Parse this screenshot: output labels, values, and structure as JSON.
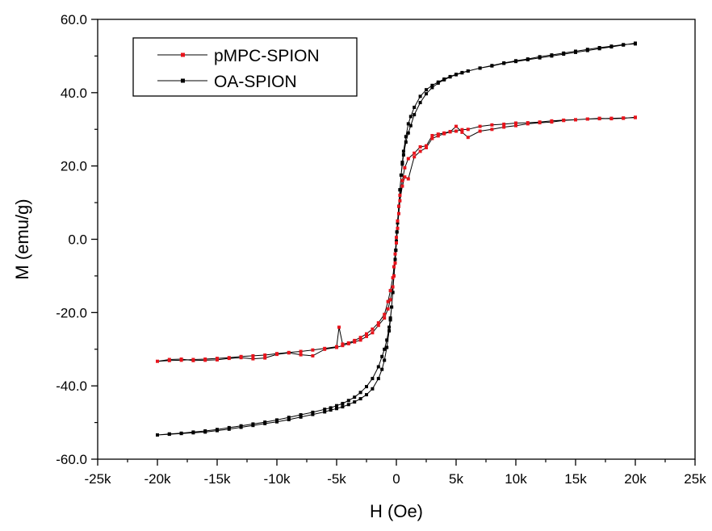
{
  "chart_data": {
    "type": "line",
    "title": "",
    "xlabel": "H (Oe)",
    "ylabel": "M (emu/g)",
    "xlim": [
      -25000,
      25000
    ],
    "ylim": [
      -60,
      60
    ],
    "grid": false,
    "legend_position": "top-left",
    "x_ticks": [
      -25000,
      -20000,
      -15000,
      -10000,
      -5000,
      0,
      5000,
      10000,
      15000,
      20000,
      25000
    ],
    "x_tick_labels": [
      "-25k",
      "-20k",
      "-15k",
      "-10k",
      "-5k",
      "0",
      "5k",
      "10k",
      "15k",
      "20k",
      "25k"
    ],
    "y_ticks": [
      -60,
      -40,
      -20,
      0,
      20,
      40,
      60
    ],
    "y_tick_labels": [
      "-60.0",
      "-40.0",
      "-20.0",
      "0.0",
      "20.0",
      "40.0",
      "60.0"
    ],
    "series": [
      {
        "name": "pMPC-SPION",
        "color": "#e8141c",
        "marker": "square",
        "x": [
          20000,
          19000,
          18000,
          17000,
          16000,
          15000,
          14000,
          13000,
          12000,
          11000,
          10000,
          9000,
          8000,
          7000,
          6000,
          5500,
          5000,
          4500,
          4000,
          3500,
          3000,
          2500,
          2000,
          1500,
          1000,
          700,
          500,
          300,
          200,
          100,
          0,
          -100,
          -200,
          -300,
          -500,
          -700,
          -1000,
          -1500,
          -2000,
          -2500,
          -3000,
          -3500,
          -4000,
          -4500,
          -4800,
          -5000,
          -6000,
          -7000,
          -8000,
          -9000,
          -10000,
          -11000,
          -12000,
          -13000,
          -14000,
          -15000,
          -16000,
          -17000,
          -18000,
          -19000,
          -20000,
          -19000,
          -18000,
          -17000,
          -16000,
          -15000,
          -14000,
          -13000,
          -12000,
          -11000,
          -10000,
          -9000,
          -8000,
          -7000,
          -6000,
          -5000,
          -4500,
          -4000,
          -3500,
          -3000,
          -2500,
          -2000,
          -1500,
          -1000,
          -700,
          -500,
          -300,
          -200,
          -100,
          0,
          100,
          200,
          300,
          500,
          700,
          1000,
          1500,
          2000,
          2500,
          3000,
          3500,
          4000,
          4500,
          5000,
          5500,
          6000,
          7000,
          8000,
          9000,
          10000,
          11000,
          12000,
          13000,
          14000,
          15000,
          16000,
          17000,
          18000,
          19000,
          20000
        ],
        "y": [
          33.3,
          33.0,
          32.9,
          33.0,
          32.8,
          32.6,
          32.5,
          32.3,
          32.0,
          31.8,
          31.7,
          31.4,
          31.2,
          30.8,
          30.0,
          29.9,
          29.5,
          29.4,
          29.0,
          28.7,
          28.3,
          25.5,
          25.2,
          23.5,
          22.0,
          19.5,
          16.0,
          12.0,
          9.0,
          5.0,
          0.5,
          -4.0,
          -7.5,
          -10.5,
          -14.0,
          -17.0,
          -20.5,
          -22.8,
          -24.5,
          -25.8,
          -26.8,
          -27.6,
          -28.3,
          -28.6,
          -24.0,
          -29.3,
          -29.8,
          -30.2,
          -30.6,
          -30.9,
          -31.2,
          -31.6,
          -31.8,
          -32.0,
          -32.3,
          -32.5,
          -32.7,
          -32.8,
          -33.0,
          -33.1,
          -33.3,
          -32.8,
          -32.7,
          -33.1,
          -33.0,
          -32.9,
          -32.5,
          -32.3,
          -32.6,
          -32.4,
          -31.4,
          -31.0,
          -31.5,
          -31.8,
          -30.0,
          -29.5,
          -29.0,
          -28.5,
          -28.0,
          -27.5,
          -26.5,
          -25.5,
          -23.5,
          -21.5,
          -19.0,
          -16.5,
          -13.0,
          -10.0,
          -6.5,
          -1.0,
          3.0,
          7.0,
          10.5,
          14.5,
          17.0,
          16.5,
          22.5,
          24.0,
          25.0,
          27.5,
          28.2,
          28.8,
          29.3,
          30.8,
          29.2,
          27.8,
          29.5,
          30.0,
          30.6,
          31.0,
          31.5,
          31.8,
          32.0,
          32.4,
          32.6,
          32.8,
          32.9,
          33.0,
          33.1,
          33.2
        ]
      },
      {
        "name": "OA-SPION",
        "color": "#000000",
        "marker": "square",
        "x": [
          20000,
          19000,
          18000,
          17000,
          16000,
          15000,
          14000,
          13000,
          12000,
          11000,
          10000,
          9000,
          8000,
          7000,
          6000,
          5500,
          5000,
          4500,
          4000,
          3500,
          3000,
          2500,
          2000,
          1500,
          1200,
          1000,
          800,
          600,
          500,
          400,
          300,
          200,
          100,
          50,
          0,
          -50,
          -100,
          -200,
          -300,
          -400,
          -500,
          -600,
          -800,
          -1000,
          -1200,
          -1500,
          -2000,
          -2500,
          -3000,
          -3500,
          -4000,
          -4500,
          -5000,
          -5500,
          -6000,
          -7000,
          -8000,
          -9000,
          -10000,
          -11000,
          -12000,
          -13000,
          -14000,
          -15000,
          -16000,
          -17000,
          -18000,
          -19000,
          -20000,
          -19000,
          -18000,
          -17000,
          -16000,
          -15000,
          -14000,
          -13000,
          -12000,
          -11000,
          -10000,
          -9000,
          -8000,
          -7000,
          -6000,
          -5500,
          -5000,
          -4500,
          -4000,
          -3500,
          -3000,
          -2500,
          -2000,
          -1500,
          -1200,
          -1000,
          -800,
          -600,
          -500,
          -400,
          -300,
          -200,
          -100,
          -50,
          0,
          50,
          100,
          200,
          300,
          400,
          500,
          600,
          800,
          1000,
          1200,
          1500,
          2000,
          2500,
          3000,
          3500,
          4000,
          4500,
          5000,
          5500,
          6000,
          7000,
          8000,
          9000,
          10000,
          11000,
          12000,
          13000,
          14000,
          15000,
          16000,
          17000,
          18000,
          19000,
          20000
        ],
        "y": [
          53.5,
          53.0,
          52.5,
          52.0,
          51.5,
          51.0,
          50.5,
          50.0,
          49.5,
          49.0,
          48.5,
          48.0,
          47.3,
          46.7,
          45.9,
          45.4,
          44.9,
          44.3,
          43.5,
          42.6,
          41.4,
          39.7,
          37.3,
          34.0,
          31.0,
          29.0,
          26.5,
          23.0,
          20.5,
          17.5,
          13.5,
          9.0,
          4.5,
          2.0,
          -0.5,
          -3.0,
          -5.5,
          -10.0,
          -14.5,
          -18.5,
          -22.0,
          -25.0,
          -29.5,
          -33.0,
          -35.5,
          -38.0,
          -40.8,
          -42.4,
          -43.5,
          -44.4,
          -45.1,
          -45.7,
          -46.2,
          -46.6,
          -47.1,
          -47.8,
          -48.5,
          -49.2,
          -49.8,
          -50.3,
          -50.8,
          -51.3,
          -51.8,
          -52.2,
          -52.6,
          -52.8,
          -53.0,
          -53.2,
          -53.4,
          -53.1,
          -52.9,
          -52.6,
          -52.3,
          -51.9,
          -51.4,
          -50.9,
          -50.4,
          -49.9,
          -49.3,
          -48.6,
          -47.9,
          -47.2,
          -46.4,
          -46.0,
          -45.4,
          -44.8,
          -44.0,
          -43.1,
          -41.8,
          -40.2,
          -38.0,
          -34.8,
          -32.0,
          -30.0,
          -27.5,
          -24.0,
          -21.5,
          -18.5,
          -14.5,
          -10.0,
          -5.5,
          -3.0,
          -0.5,
          2.0,
          4.5,
          9.0,
          13.5,
          17.5,
          21.0,
          24.0,
          28.0,
          31.5,
          33.5,
          36.0,
          39.0,
          40.8,
          42.0,
          42.9,
          43.7,
          44.4,
          45.0,
          45.5,
          45.9,
          46.7,
          47.4,
          48.1,
          48.7,
          49.2,
          49.8,
          50.3,
          50.8,
          51.3,
          51.8,
          52.3,
          52.7,
          53.1,
          53.3
        ]
      }
    ]
  }
}
